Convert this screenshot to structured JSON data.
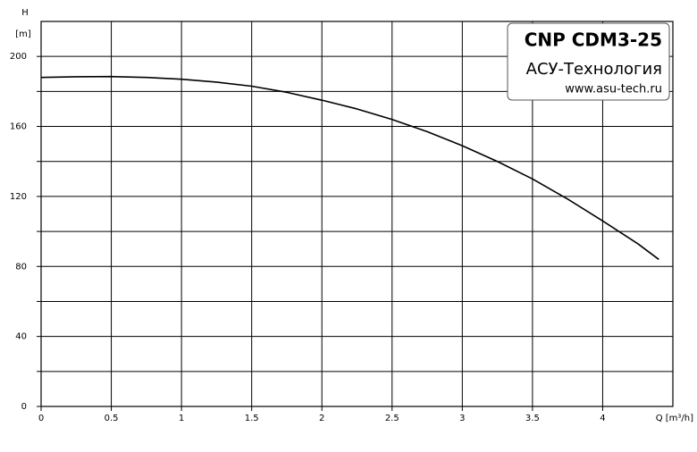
{
  "chart_data": {
    "type": "line",
    "title": "CNP CDM3-25",
    "subtitle": "АСУ-Технология",
    "source": "www.asu-tech.ru",
    "y_label": "H",
    "y_unit": "[m]",
    "x_label": "Q [m³/h]",
    "x": [
      0,
      0.25,
      0.5,
      0.75,
      1,
      1.25,
      1.5,
      1.75,
      2,
      2.25,
      2.5,
      2.75,
      3,
      3.25,
      3.5,
      3.75,
      4,
      4.25,
      4.4
    ],
    "series": [
      {
        "color": "#000000",
        "values": [
          188,
          188.4,
          188.5,
          188,
          187,
          185.3,
          183,
          179.5,
          175,
          170,
          164,
          157,
          149,
          140,
          130,
          118.5,
          106,
          93,
          84
        ]
      }
    ],
    "xlim": [
      0,
      4.5
    ],
    "xticks": [
      0,
      0.5,
      1,
      1.5,
      2,
      2.5,
      3,
      3.5,
      4
    ],
    "ylim": [
      0,
      220
    ],
    "yticks": [
      0,
      40,
      80,
      120,
      160,
      200
    ],
    "minor_yticks": [
      20,
      60,
      100,
      140,
      180
    ],
    "grid": true
  }
}
